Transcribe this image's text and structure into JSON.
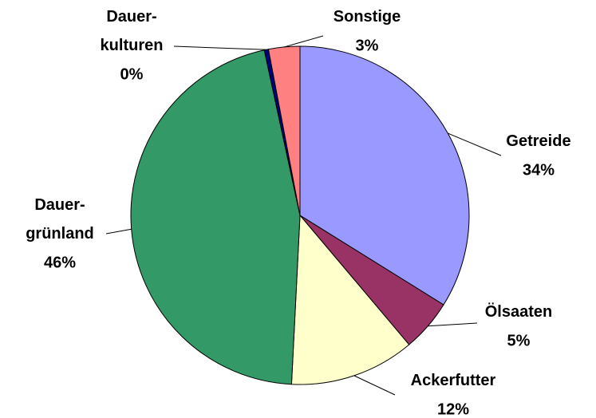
{
  "chart_data": {
    "type": "pie",
    "categories": [
      "Getreide",
      "Ölsaaten",
      "Ackerfutter",
      "Dauer-\ngrünland",
      "Dauer-\nkulturen",
      "Sonstige"
    ],
    "values": [
      34,
      5,
      12,
      46,
      0.4,
      3
    ],
    "value_labels": [
      "34%",
      "5%",
      "12%",
      "46%",
      "0%",
      "3%"
    ],
    "colors": [
      "#9999ff",
      "#993366",
      "#ffffcc",
      "#339966",
      "#000080",
      "#ff8080"
    ]
  }
}
